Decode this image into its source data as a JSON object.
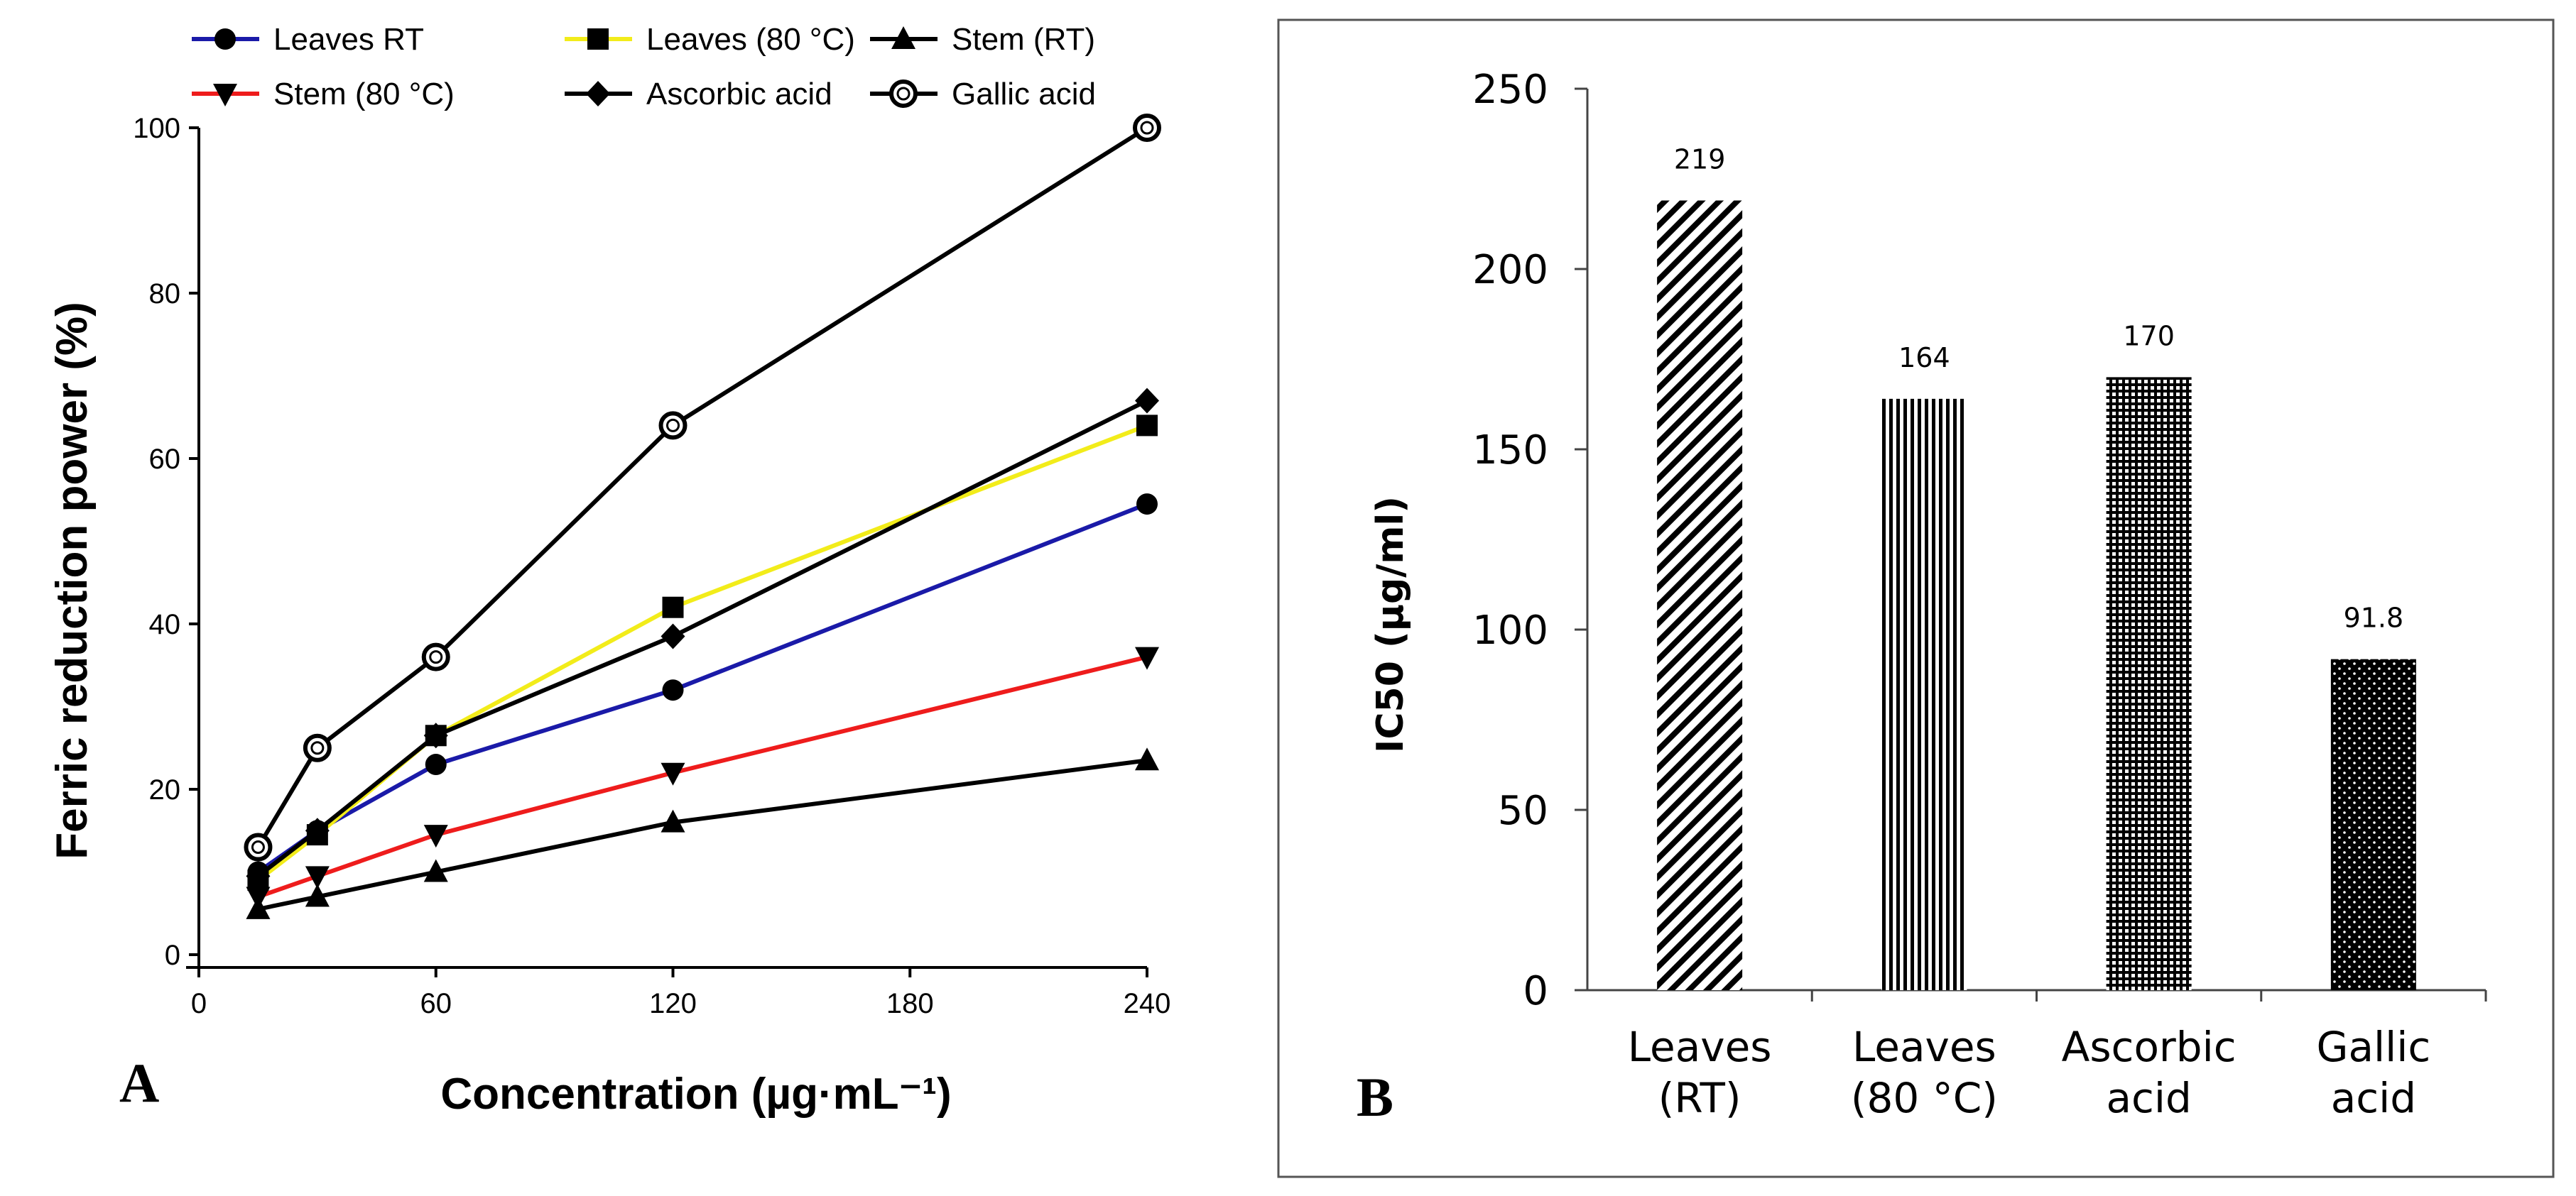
{
  "chart_data": [
    {
      "type": "line",
      "panel_label": "A",
      "xlabel": "Concentration (µg·mL⁻¹)",
      "ylabel": "Ferric reduction power  (%)",
      "xlim": [
        0,
        240
      ],
      "ylim": [
        0,
        100
      ],
      "xticks": [
        0,
        60,
        120,
        180,
        240
      ],
      "yticks": [
        0,
        20,
        40,
        60,
        80,
        100
      ],
      "legend_position": "top",
      "x": [
        15,
        30,
        60,
        120,
        240
      ],
      "series": [
        {
          "name": "Leaves RT",
          "color": "#1a1aa8",
          "marker": "circle",
          "values": [
            10,
            15,
            23,
            32,
            54.5
          ]
        },
        {
          "name": "Leaves (80 °C)",
          "color": "#f2ec1a",
          "marker": "square",
          "values": [
            9,
            14.5,
            26.5,
            42,
            64
          ]
        },
        {
          "name": "Stem (RT)",
          "color": "#000000",
          "marker": "triangle-up",
          "values": [
            5.5,
            7,
            10,
            16,
            23.5
          ]
        },
        {
          "name": "Stem (80 °C)",
          "color": "#ee1c1c",
          "marker": "triangle-down",
          "values": [
            7,
            9.5,
            14.5,
            22,
            36
          ]
        },
        {
          "name": "Ascorbic acid",
          "color": "#000000",
          "marker": "diamond",
          "values": [
            9.5,
            15,
            26.5,
            38.5,
            67
          ]
        },
        {
          "name": "Gallic acid",
          "color": "#000000",
          "marker": "open-circle",
          "values": [
            13,
            25,
            36,
            64,
            100
          ]
        }
      ]
    },
    {
      "type": "bar",
      "panel_label": "B",
      "ylabel": "IC50 (µg/ml)",
      "ylim": [
        0,
        250
      ],
      "yticks": [
        0,
        50,
        100,
        150,
        200,
        250
      ],
      "categories": [
        {
          "line1": "Leaves",
          "line2": "(RT)"
        },
        {
          "line1": "Leaves",
          "line2": "(80 °C)"
        },
        {
          "line1": "Ascorbic",
          "line2": "acid"
        },
        {
          "line1": "Gallic",
          "line2": "acid"
        }
      ],
      "values": [
        219,
        164,
        170,
        91.8
      ],
      "data_labels": [
        "219",
        "164",
        "170",
        "91.8"
      ],
      "patterns": [
        "diagonal",
        "vertical",
        "grid",
        "dots"
      ]
    }
  ]
}
